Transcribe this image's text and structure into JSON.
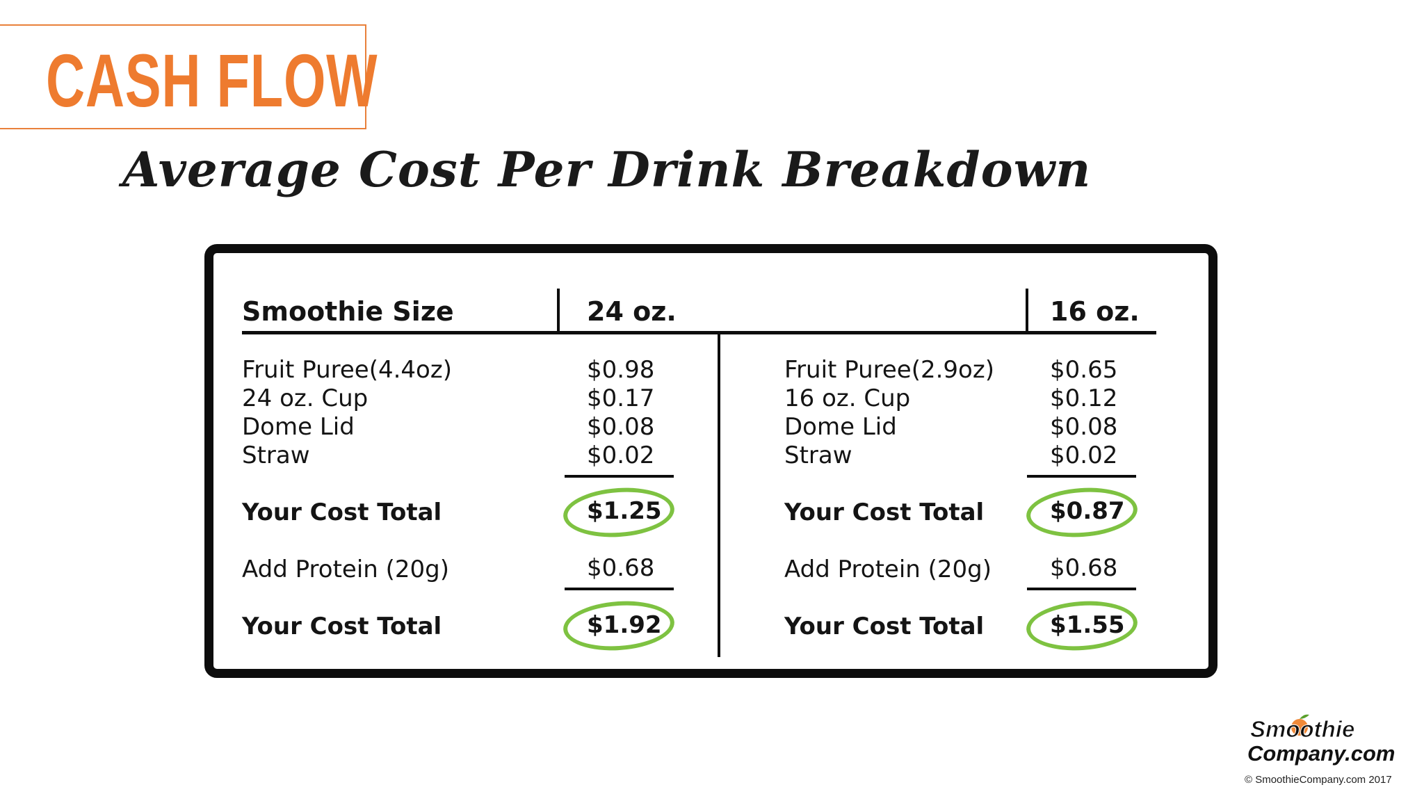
{
  "heading": "CASH FLOW",
  "subtitle": "Average Cost Per Drink Breakdown",
  "table": {
    "size_label": "Smoothie Size",
    "col24": {
      "header": "24 oz.",
      "items": [
        {
          "label": "Fruit Puree(4.4oz)",
          "value": "$0.98"
        },
        {
          "label": "24 oz. Cup",
          "value": "$0.17"
        },
        {
          "label": "Dome Lid",
          "value": "$0.08"
        },
        {
          "label": "Straw",
          "value": "$0.02"
        }
      ],
      "total_label": "Your Cost Total",
      "total": "$1.25",
      "protein_label": "Add Protein (20g)",
      "protein": "$0.68",
      "total2_label": "Your Cost Total",
      "total2": "$1.92"
    },
    "col16": {
      "header": "16 oz.",
      "items": [
        {
          "label": "Fruit Puree(2.9oz)",
          "value": "$0.65"
        },
        {
          "label": "16 oz. Cup",
          "value": "$0.12"
        },
        {
          "label": "Dome Lid",
          "value": "$0.08"
        },
        {
          "label": "Straw",
          "value": "$0.02"
        }
      ],
      "total_label": "Your Cost Total",
      "total": "$0.87",
      "protein_label": "Add Protein (20g)",
      "protein": "$0.68",
      "total2_label": "Your Cost Total",
      "total2": "$1.55"
    }
  },
  "colors": {
    "accent": "#ee7b2f",
    "highlight": "#7ec241",
    "frame": "#0d0d0d"
  },
  "logo": {
    "line1": "Smoothie",
    "line2": "Company.com"
  },
  "copyright": "© SmoothieCompany.com  2017"
}
